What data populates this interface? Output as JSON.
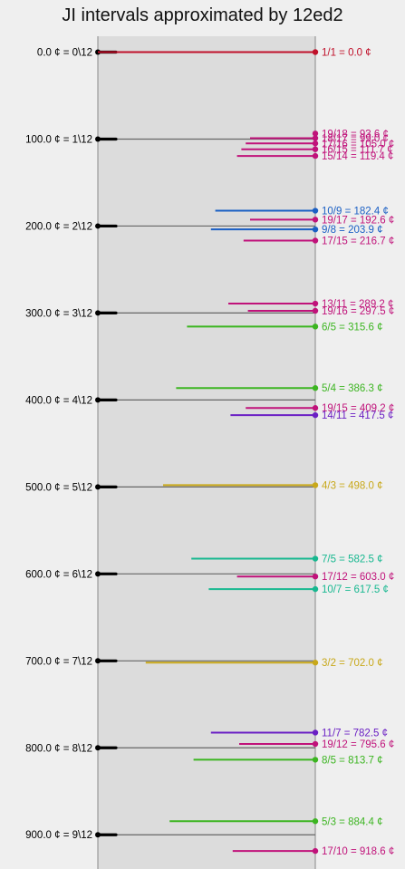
{
  "title": "JI intervals approximated by 12ed2",
  "edo_steps": [
    {
      "cents": 0.0,
      "label": "0.0 ¢ = 0\\12"
    },
    {
      "cents": 100.0,
      "label": "100.0 ¢ = 1\\12"
    },
    {
      "cents": 200.0,
      "label": "200.0 ¢ = 2\\12"
    },
    {
      "cents": 300.0,
      "label": "300.0 ¢ = 3\\12"
    },
    {
      "cents": 400.0,
      "label": "400.0 ¢ = 4\\12"
    },
    {
      "cents": 500.0,
      "label": "500.0 ¢ = 5\\12"
    },
    {
      "cents": 600.0,
      "label": "600.0 ¢ = 6\\12"
    },
    {
      "cents": 700.0,
      "label": "700.0 ¢ = 7\\12"
    },
    {
      "cents": 800.0,
      "label": "800.0 ¢ = 8\\12"
    },
    {
      "cents": 900.0,
      "label": "900.0 ¢ = 9\\12"
    }
  ],
  "intervals": [
    {
      "ratio": "1/1",
      "cents": 0.0,
      "label": "1/1 = 0.0 ¢",
      "color": "#c0102a",
      "length": 1.0
    },
    {
      "ratio": "19/18",
      "cents": 93.6,
      "label": "19/18 = 93.6 ¢",
      "color": "#c0127a",
      "length": 0
    },
    {
      "ratio": "18/17",
      "cents": 99.0,
      "label": "18/17 = 99.0 ¢",
      "color": "#c0127a",
      "length": 0.3
    },
    {
      "ratio": "17/16",
      "cents": 105.0,
      "label": "17/16 = 105.0 ¢",
      "color": "#c0127a",
      "length": 0.32
    },
    {
      "ratio": "16/15",
      "cents": 111.7,
      "label": "16/15 = 111.7 ¢",
      "color": "#c0127a",
      "length": 0.34
    },
    {
      "ratio": "15/14",
      "cents": 119.4,
      "label": "15/14 = 119.4 ¢",
      "color": "#c0127a",
      "length": 0.36
    },
    {
      "ratio": "10/9",
      "cents": 182.4,
      "label": "10/9 = 182.4 ¢",
      "color": "#1a5fc4",
      "length": 0.46
    },
    {
      "ratio": "19/17",
      "cents": 192.6,
      "label": "19/17 = 192.6 ¢",
      "color": "#c0127a",
      "length": 0.3
    },
    {
      "ratio": "9/8",
      "cents": 203.9,
      "label": "9/8 = 203.9 ¢",
      "color": "#1a5fc4",
      "length": 0.48
    },
    {
      "ratio": "17/15",
      "cents": 216.7,
      "label": "17/15 = 216.7 ¢",
      "color": "#c0127a",
      "length": 0.33
    },
    {
      "ratio": "13/11",
      "cents": 289.2,
      "label": "13/11 = 289.2 ¢",
      "color": "#c0127a",
      "length": 0.4
    },
    {
      "ratio": "19/16",
      "cents": 297.5,
      "label": "19/16 = 297.5 ¢",
      "color": "#c0127a",
      "length": 0.31
    },
    {
      "ratio": "6/5",
      "cents": 315.6,
      "label": "6/5 = 315.6 ¢",
      "color": "#3cb521",
      "length": 0.59
    },
    {
      "ratio": "5/4",
      "cents": 386.3,
      "label": "5/4 = 386.3 ¢",
      "color": "#3cb521",
      "length": 0.64
    },
    {
      "ratio": "19/15",
      "cents": 409.2,
      "label": "19/15 = 409.2 ¢",
      "color": "#c0127a",
      "length": 0.32
    },
    {
      "ratio": "14/11",
      "cents": 417.5,
      "label": "14/11 = 417.5 ¢",
      "color": "#6a1fc4",
      "length": 0.39
    },
    {
      "ratio": "4/3",
      "cents": 498.0,
      "label": "4/3 = 498.0 ¢",
      "color": "#c8a81a",
      "length": 0.7
    },
    {
      "ratio": "7/5",
      "cents": 582.5,
      "label": "7/5 = 582.5 ¢",
      "color": "#17b890",
      "length": 0.57
    },
    {
      "ratio": "17/12",
      "cents": 603.0,
      "label": "17/12 = 603.0 ¢",
      "color": "#c0127a",
      "length": 0.36
    },
    {
      "ratio": "10/7",
      "cents": 617.5,
      "label": "10/7 = 617.5 ¢",
      "color": "#17b890",
      "length": 0.49
    },
    {
      "ratio": "3/2",
      "cents": 702.0,
      "label": "3/2 = 702.0 ¢",
      "color": "#c8a81a",
      "length": 0.78
    },
    {
      "ratio": "11/7",
      "cents": 782.5,
      "label": "11/7 = 782.5 ¢",
      "color": "#6a1fc4",
      "length": 0.48
    },
    {
      "ratio": "19/12",
      "cents": 795.6,
      "label": "19/12 = 795.6 ¢",
      "color": "#c0127a",
      "length": 0.35
    },
    {
      "ratio": "8/5",
      "cents": 813.7,
      "label": "8/5 = 813.7 ¢",
      "color": "#3cb521",
      "length": 0.56
    },
    {
      "ratio": "5/3",
      "cents": 884.4,
      "label": "5/3 = 884.4 ¢",
      "color": "#3cb521",
      "length": 0.67
    },
    {
      "ratio": "17/10",
      "cents": 918.6,
      "label": "17/10 = 918.6 ¢",
      "color": "#c0127a",
      "length": 0.38
    }
  ]
}
